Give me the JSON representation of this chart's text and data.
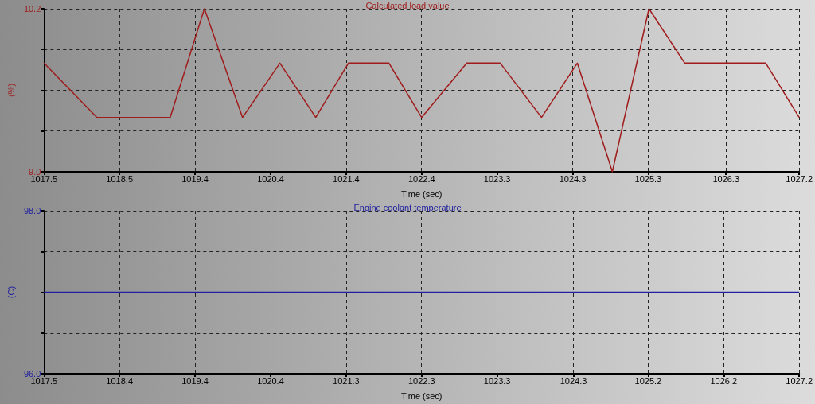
{
  "chart_data": [
    {
      "type": "line",
      "title": "Calculated load value",
      "xlabel": "Time (sec)",
      "ylabel": "(%)",
      "x": [
        1017.5,
        1018.18,
        1019.12,
        1019.56,
        1020.05,
        1020.53,
        1020.99,
        1021.41,
        1021.93,
        1022.35,
        1022.93,
        1023.36,
        1023.89,
        1024.35,
        1024.8,
        1025.27,
        1025.73,
        1026.77,
        1027.2
      ],
      "series": [
        {
          "color": "#a01c1c",
          "values": [
            9.8,
            9.4,
            9.4,
            10.2,
            9.4,
            9.8,
            9.4,
            9.8,
            9.8,
            9.4,
            9.8,
            9.8,
            9.4,
            9.8,
            9.0,
            10.2,
            9.8,
            9.8,
            9.4
          ]
        }
      ],
      "xlim": [
        1017.5,
        1027.2
      ],
      "xticks": [
        1017.5,
        {
          "value": 1018.47,
          "label": "1018.5"
        },
        {
          "value": 1019.44,
          "label": "1019.4"
        },
        {
          "value": 1020.41,
          "label": "1020.4"
        },
        {
          "value": 1021.38,
          "label": "1021.4"
        },
        {
          "value": 1022.35,
          "label": "1022.4"
        },
        {
          "value": 1023.32,
          "label": "1023.3"
        },
        {
          "value": 1024.29,
          "label": "1024.3"
        },
        {
          "value": 1025.26,
          "label": "1025.3"
        },
        {
          "value": 1026.26,
          "label": "1026.3"
        },
        1027.2
      ],
      "ylim": [
        9.0,
        10.2
      ],
      "yticks": [
        {
          "value": 9,
          "label": "9.0"
        },
        {
          "value": 9.3,
          "label": null
        },
        {
          "value": 9.6,
          "label": null
        },
        {
          "value": 9.9,
          "label": null
        },
        10.2
      ],
      "grid": true
    },
    {
      "type": "line",
      "title": "Engine coolant temperature",
      "xlabel": "Time (sec)",
      "ylabel": "(C)",
      "x": [
        1017.46,
        1027.16
      ],
      "series": [
        {
          "color": "#2020a0",
          "values": [
            97.0,
            97.0
          ]
        }
      ],
      "xlim": [
        1017.46,
        1027.16
      ],
      "xticks": [
        {
          "value": 1017.46,
          "label": "1017.5"
        },
        {
          "value": 1018.43,
          "label": "1018.4"
        },
        {
          "value": 1019.4,
          "label": "1019.4"
        },
        {
          "value": 1020.37,
          "label": "1020.4"
        },
        {
          "value": 1021.34,
          "label": "1021.3"
        },
        {
          "value": 1022.31,
          "label": "1022.3"
        },
        {
          "value": 1023.28,
          "label": "1023.3"
        },
        {
          "value": 1024.26,
          "label": "1024.3"
        },
        {
          "value": 1025.22,
          "label": "1025.2"
        },
        {
          "value": 1026.19,
          "label": "1026.2"
        },
        {
          "value": 1027.16,
          "label": "1027.2"
        }
      ],
      "ylim": [
        96.0,
        98.0
      ],
      "yticks": [
        {
          "value": 96,
          "label": "96.0"
        },
        {
          "value": 96.5,
          "label": null
        },
        {
          "value": 97,
          "label": null
        },
        {
          "value": 97.5,
          "label": null
        },
        {
          "value": 98,
          "label": "98.0"
        }
      ],
      "grid": true
    }
  ]
}
